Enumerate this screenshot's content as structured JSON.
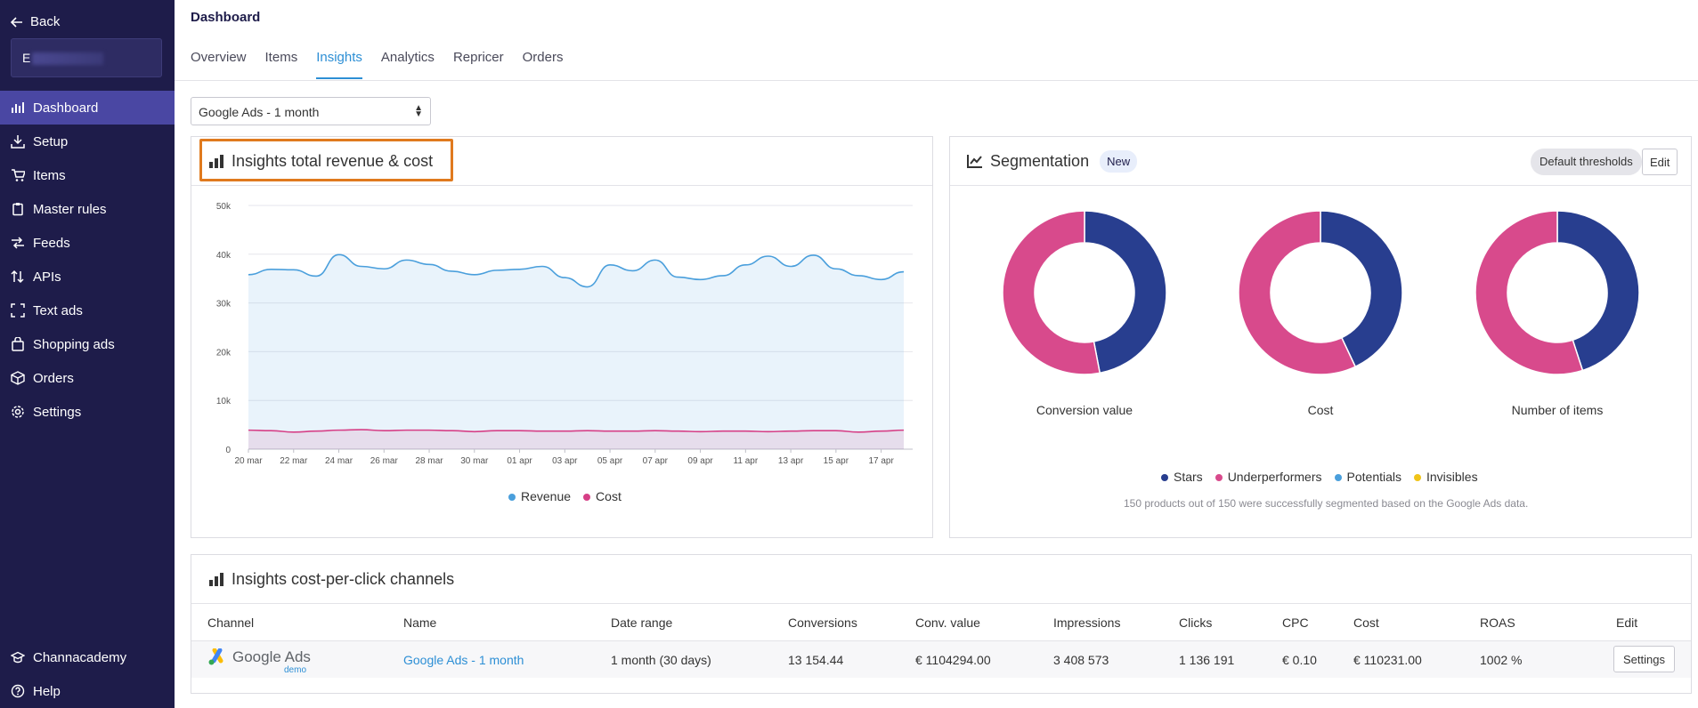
{
  "sidebar": {
    "back_label": "Back",
    "account_initial": "E",
    "items": [
      {
        "label": "Dashboard",
        "icon": "bar-chart-icon"
      },
      {
        "label": "Setup",
        "icon": "download-icon"
      },
      {
        "label": "Items",
        "icon": "cart-icon"
      },
      {
        "label": "Master rules",
        "icon": "clipboard-icon"
      },
      {
        "label": "Feeds",
        "icon": "shuffle-icon"
      },
      {
        "label": "APIs",
        "icon": "sort-arrows-icon"
      },
      {
        "label": "Text ads",
        "icon": "expand-icon"
      },
      {
        "label": "Shopping ads",
        "icon": "shopping-bag-icon"
      },
      {
        "label": "Orders",
        "icon": "box-icon"
      },
      {
        "label": "Settings",
        "icon": "gear-icon"
      }
    ],
    "bottom": [
      {
        "label": "Channacademy",
        "icon": "graduation-cap-icon"
      },
      {
        "label": "Help",
        "icon": "question-icon"
      }
    ]
  },
  "header": {
    "title": "Dashboard",
    "tabs": [
      "Overview",
      "Items",
      "Insights",
      "Analytics",
      "Repricer",
      "Orders"
    ],
    "active_tab": "Insights"
  },
  "filter": {
    "selected": "Google Ads - 1 month"
  },
  "revenue_card": {
    "title": "Insights total revenue & cost",
    "legend": [
      "Revenue",
      "Cost"
    ]
  },
  "segmentation_card": {
    "title": "Segmentation",
    "badge": "New",
    "thresholds_label": "Default thresholds",
    "edit_label": "Edit",
    "donuts": [
      "Conversion value",
      "Cost",
      "Number of items"
    ],
    "legend": [
      "Stars",
      "Underperformers",
      "Potentials",
      "Invisibles"
    ],
    "note": "150 products out of 150 were successfully segmented based on the Google Ads data."
  },
  "cpc_card": {
    "title": "Insights cost-per-click channels",
    "columns": [
      "Channel",
      "Name",
      "Date range",
      "Conversions",
      "Conv. value",
      "Impressions",
      "Clicks",
      "CPC",
      "Cost",
      "ROAS",
      "Edit"
    ],
    "row": {
      "channel_logo": "Google Ads",
      "channel_sub": "demo",
      "name": "Google Ads - 1 month",
      "date_range": "1 month (30 days)",
      "conversions": "13 154.44",
      "conv_value": "€ 1104294.00",
      "impressions": "3 408 573",
      "clicks": "1 136 191",
      "cpc": "€ 0.10",
      "cost": "€ 110231.00",
      "roas": "1002 %",
      "edit_label": "Settings"
    }
  },
  "colors": {
    "sidebar": "#1e1c4a",
    "accent": "#2d8fd5",
    "revenue": "#4a9fdc",
    "cost": "#d63f86",
    "stars": "#283e8f",
    "underperformers": "#d84a8c",
    "potentials": "#4a9fdc",
    "invisibles": "#f0c419",
    "highlight": "#e07a1e"
  },
  "chart_data": [
    {
      "type": "area",
      "title": "Insights total revenue & cost",
      "x": [
        "20 mar",
        "21 mar",
        "22 mar",
        "23 mar",
        "24 mar",
        "25 mar",
        "26 mar",
        "27 mar",
        "28 mar",
        "29 mar",
        "30 mar",
        "31 mar",
        "01 apr",
        "02 apr",
        "03 apr",
        "04 apr",
        "05 apr",
        "06 apr",
        "07 apr",
        "08 apr",
        "09 apr",
        "10 apr",
        "11 apr",
        "12 apr",
        "13 apr",
        "14 apr",
        "15 apr",
        "16 apr",
        "17 apr",
        "18 apr"
      ],
      "x_tick_labels": [
        "20 mar",
        "22 mar",
        "24 mar",
        "26 mar",
        "28 mar",
        "30 mar",
        "01 apr",
        "03 apr",
        "05 apr",
        "07 apr",
        "09 apr",
        "11 apr",
        "13 apr",
        "15 apr",
        "17 apr"
      ],
      "y_tick_labels": [
        "0",
        "10k",
        "20k",
        "30k",
        "40k",
        "50k"
      ],
      "ylim": [
        0,
        50000
      ],
      "grid": true,
      "legend_position": "bottom",
      "series": [
        {
          "name": "Revenue",
          "values": [
            35800,
            36900,
            36800,
            35500,
            39900,
            37500,
            37000,
            38800,
            37900,
            36500,
            35800,
            36700,
            36900,
            37500,
            35200,
            33300,
            37800,
            36600,
            38800,
            35300,
            34800,
            35600,
            37800,
            39600,
            37500,
            39800,
            37000,
            35600,
            34800,
            36400
          ]
        },
        {
          "name": "Cost",
          "values": [
            3900,
            3800,
            3500,
            3700,
            3900,
            4000,
            3800,
            3900,
            3900,
            3800,
            3600,
            3800,
            3800,
            3700,
            3700,
            3800,
            3700,
            3700,
            3800,
            3700,
            3600,
            3700,
            3700,
            3600,
            3700,
            3800,
            3800,
            3500,
            3700,
            3900
          ]
        }
      ]
    },
    {
      "type": "pie",
      "title": "Conversion value",
      "categories": [
        "Stars",
        "Underperformers",
        "Potentials",
        "Invisibles"
      ],
      "values": [
        47,
        53,
        0,
        0
      ]
    },
    {
      "type": "pie",
      "title": "Cost",
      "categories": [
        "Stars",
        "Underperformers",
        "Potentials",
        "Invisibles"
      ],
      "values": [
        43,
        57,
        0,
        0
      ]
    },
    {
      "type": "pie",
      "title": "Number of items",
      "categories": [
        "Stars",
        "Underperformers",
        "Potentials",
        "Invisibles"
      ],
      "values": [
        45,
        55,
        0,
        0
      ]
    }
  ]
}
